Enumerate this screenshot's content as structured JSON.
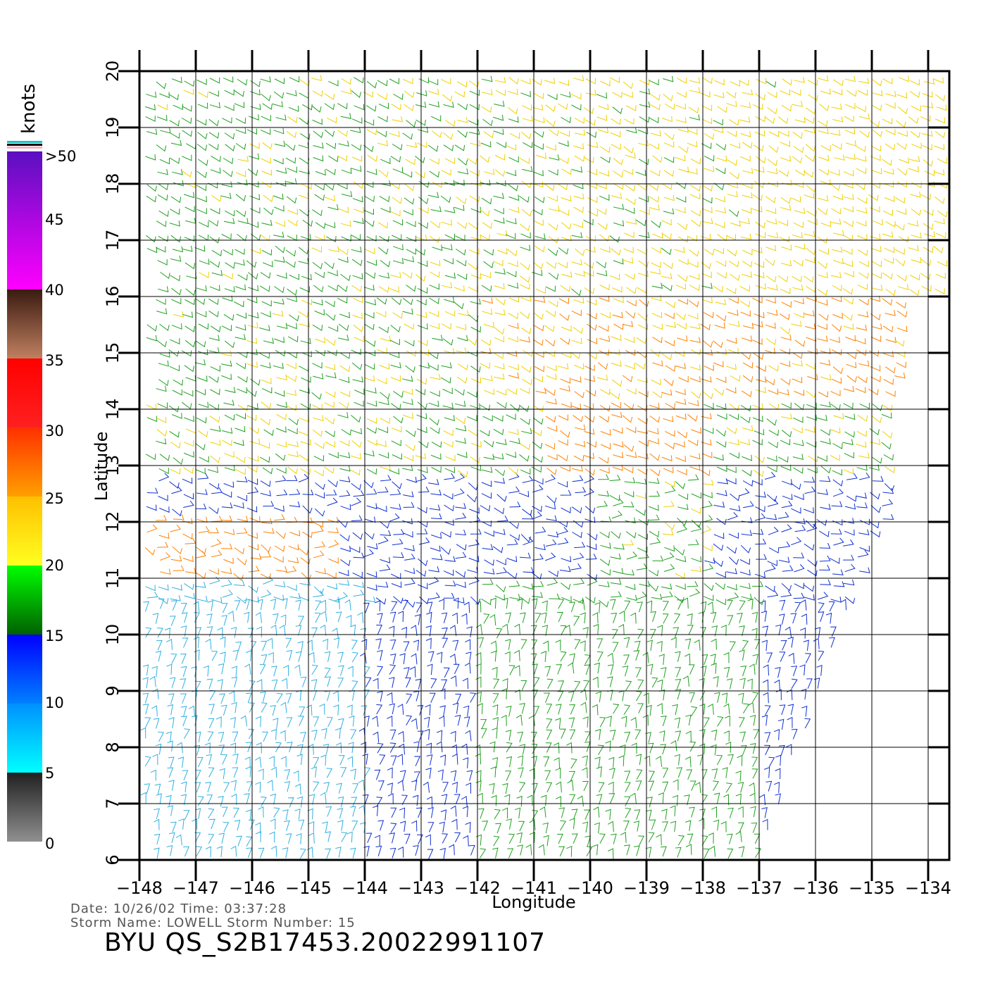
{
  "map": {
    "lon_range": [
      -148,
      -134
    ],
    "lat_range": [
      6,
      20
    ],
    "lon_ticks": [
      "−148",
      "−147",
      "−146",
      "−145",
      "−144",
      "−143",
      "−142",
      "−141",
      "−140",
      "−139",
      "−138",
      "−137",
      "−136",
      "−135",
      "−134"
    ],
    "lat_ticks": [
      "6",
      "7",
      "8",
      "9",
      "10",
      "11",
      "12",
      "13",
      "14",
      "15",
      "16",
      "17",
      "18",
      "19",
      "20"
    ],
    "xlabel": "Longitude",
    "ylabel": "Latitude",
    "layer": "QuikSCAT wind barbs, colored by speed"
  },
  "colorbar": {
    "title": "knots",
    "labels": [
      ">50",
      "45",
      "40",
      "35",
      "30",
      "25",
      "20",
      "15",
      "10",
      "5",
      "0"
    ],
    "segments": [
      {
        "from": 40,
        "to": 50,
        "top_color": "#5a10c0",
        "bottom_color": "#ff00ff"
      },
      {
        "from": 35,
        "to": 40,
        "top_color": "#3a1a10",
        "bottom_color": "#c08060"
      },
      {
        "from": 30,
        "to": 35,
        "top_color": "#ff0000",
        "bottom_color": "#ff2020"
      },
      {
        "from": 25,
        "to": 30,
        "top_color": "#ff3000",
        "bottom_color": "#ffa000"
      },
      {
        "from": 20,
        "to": 25,
        "top_color": "#ffc000",
        "bottom_color": "#ffff20"
      },
      {
        "from": 15,
        "to": 20,
        "top_color": "#00ff00",
        "bottom_color": "#006000"
      },
      {
        "from": 10,
        "to": 15,
        "top_color": "#0000ff",
        "bottom_color": "#0080ff"
      },
      {
        "from": 5,
        "to": 10,
        "top_color": "#0090ff",
        "bottom_color": "#00ffff"
      },
      {
        "from": 0,
        "to": 5,
        "top_color": "#202020",
        "bottom_color": "#909090"
      }
    ],
    "top_stripe_colors": [
      "#20c0c0",
      "#000000",
      "#ffb0c0"
    ]
  },
  "meta": {
    "date_line": "Date: 10/26/02   Time: 03:37:28",
    "storm_line": "Storm Name: LOWELL   Storm Number: 15",
    "footer_id": "BYU QS_S2B17453.20022991107"
  }
}
